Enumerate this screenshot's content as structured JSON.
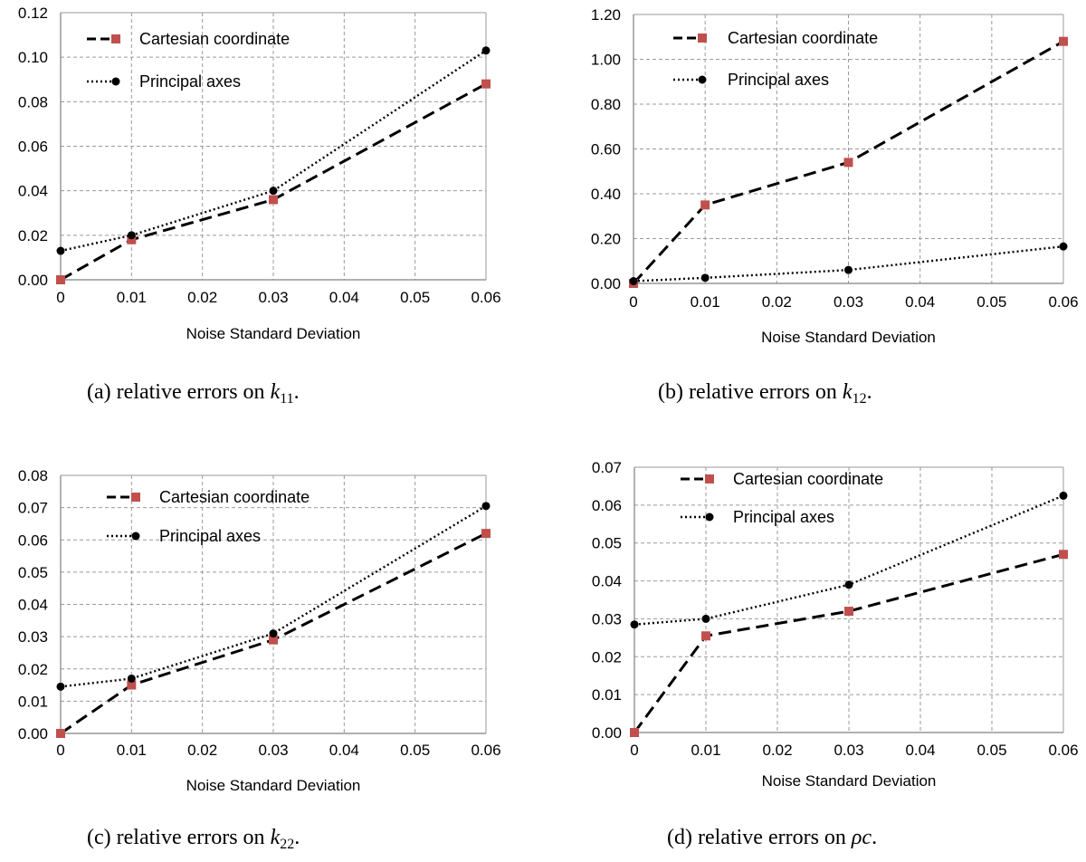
{
  "chart_data": [
    {
      "type": "line",
      "caption": {
        "prefix": "(a)  relative errors on ",
        "symbol": "k",
        "subscript": "11",
        "suffix": "."
      },
      "xlabel": "Noise Standard Deviation",
      "x_ticks": [
        "0",
        "0.01",
        "0.02",
        "0.03",
        "0.04",
        "0.05",
        "0.06"
      ],
      "y_ticks": [
        "0.00",
        "0.02",
        "0.04",
        "0.06",
        "0.08",
        "0.10",
        "0.12"
      ],
      "xlim": [
        0,
        0.06
      ],
      "ylim": [
        0,
        0.12
      ],
      "grid": true,
      "legend": "top-left",
      "series": [
        {
          "name": "Cartesian coordinate",
          "style": "dashed",
          "marker": "square",
          "color": "#c0504d",
          "x": [
            0,
            0.01,
            0.03,
            0.06
          ],
          "y": [
            0.0,
            0.018,
            0.036,
            0.088
          ]
        },
        {
          "name": "Principal axes",
          "style": "dotted",
          "marker": "circle",
          "color": "#000000",
          "x": [
            0,
            0.01,
            0.03,
            0.06
          ],
          "y": [
            0.013,
            0.02,
            0.04,
            0.103
          ]
        }
      ]
    },
    {
      "type": "line",
      "caption": {
        "prefix": "(b)  relative errors on ",
        "symbol": "k",
        "subscript": "12",
        "suffix": "."
      },
      "xlabel": "Noise Standard Deviation",
      "x_ticks": [
        "0",
        "0.01",
        "0.02",
        "0.03",
        "0.04",
        "0.05",
        "0.06"
      ],
      "y_ticks": [
        "0.00",
        "0.20",
        "0.40",
        "0.60",
        "0.80",
        "1.00",
        "1.20"
      ],
      "xlim": [
        0,
        0.06
      ],
      "ylim": [
        0,
        1.2
      ],
      "grid": true,
      "legend": "top-left",
      "series": [
        {
          "name": "Cartesian coordinate",
          "style": "dashed",
          "marker": "square",
          "color": "#c0504d",
          "x": [
            0,
            0.01,
            0.03,
            0.06
          ],
          "y": [
            0.0,
            0.35,
            0.54,
            1.08
          ]
        },
        {
          "name": "Principal axes",
          "style": "dotted",
          "marker": "circle",
          "color": "#000000",
          "x": [
            0,
            0.01,
            0.03,
            0.06
          ],
          "y": [
            0.01,
            0.025,
            0.06,
            0.165
          ]
        }
      ]
    },
    {
      "type": "line",
      "caption": {
        "prefix": "(c)  relative errors on ",
        "symbol": "k",
        "subscript": "22",
        "suffix": "."
      },
      "xlabel": "Noise Standard Deviation",
      "x_ticks": [
        "0",
        "0.01",
        "0.02",
        "0.03",
        "0.04",
        "0.05",
        "0.06"
      ],
      "y_ticks": [
        "0.00",
        "0.01",
        "0.02",
        "0.03",
        "0.04",
        "0.05",
        "0.06",
        "0.07",
        "0.08"
      ],
      "xlim": [
        0,
        0.06
      ],
      "ylim": [
        0,
        0.08
      ],
      "grid": true,
      "legend": "top-center",
      "series": [
        {
          "name": "Cartesian coordinate",
          "style": "dashed",
          "marker": "square",
          "color": "#c0504d",
          "x": [
            0,
            0.01,
            0.03,
            0.06
          ],
          "y": [
            0.0,
            0.015,
            0.029,
            0.062
          ]
        },
        {
          "name": "Principal axes",
          "style": "dotted",
          "marker": "circle",
          "color": "#000000",
          "x": [
            0,
            0.01,
            0.03,
            0.06
          ],
          "y": [
            0.0145,
            0.017,
            0.031,
            0.0705
          ]
        }
      ]
    },
    {
      "type": "line",
      "caption": {
        "prefix": "(d)  relative errors on ",
        "symbol": "ρc",
        "subscript": "",
        "suffix": "."
      },
      "xlabel": "Noise Standard Deviation",
      "x_ticks": [
        "0",
        "0.01",
        "0.02",
        "0.03",
        "0.04",
        "0.05",
        "0.06"
      ],
      "y_ticks": [
        "0.00",
        "0.01",
        "0.02",
        "0.03",
        "0.04",
        "0.05",
        "0.06",
        "0.07"
      ],
      "xlim": [
        0,
        0.06
      ],
      "ylim": [
        0,
        0.07
      ],
      "grid": true,
      "legend": "top-left",
      "series": [
        {
          "name": "Cartesian coordinate",
          "style": "dashed",
          "marker": "square",
          "color": "#c0504d",
          "x": [
            0,
            0.01,
            0.03,
            0.06
          ],
          "y": [
            0.0,
            0.0255,
            0.032,
            0.047
          ]
        },
        {
          "name": "Principal axes",
          "style": "dotted",
          "marker": "circle",
          "color": "#000000",
          "x": [
            0,
            0.01,
            0.03,
            0.06
          ],
          "y": [
            0.0285,
            0.03,
            0.039,
            0.0625
          ]
        }
      ]
    }
  ]
}
